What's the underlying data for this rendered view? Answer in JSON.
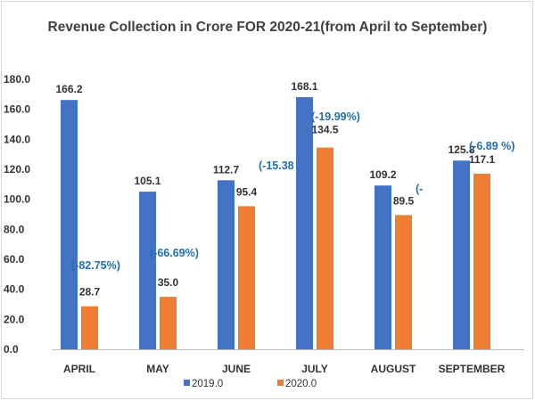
{
  "chart_data": {
    "type": "bar",
    "title": "Revenue Collection in Crore FOR 2020-21(from April to September)",
    "categories": [
      "APRIL",
      "MAY",
      "JUNE",
      "JULY",
      "AUGUST",
      "SEPTEMBER"
    ],
    "series": [
      {
        "name": "2019.0",
        "color": "#4472c4",
        "values": [
          166.2,
          105.1,
          112.7,
          168.1,
          109.2,
          125.8
        ]
      },
      {
        "name": "2020.0",
        "color": "#ed7d31",
        "values": [
          28.7,
          35.0,
          95.4,
          134.5,
          89.5,
          117.1
        ]
      }
    ],
    "value_labels": [
      [
        "166.2",
        "105.1",
        "112.7",
        "168.1",
        "109.2",
        "125.8"
      ],
      [
        "28.7",
        "35.0",
        "95.4",
        "134.5",
        "89.5",
        "117.1"
      ]
    ],
    "annotations": [
      "(-82.75%)",
      "(-66.69%)",
      "(-15.38",
      "(-19.99%)",
      "(-",
      "(-6.89 %)"
    ],
    "yticks": [
      "0.0",
      "20.0",
      "40.0",
      "60.0",
      "80.0",
      "100.0",
      "120.0",
      "140.0",
      "160.0",
      "180.0"
    ],
    "ylim": [
      0,
      180
    ],
    "grid": false,
    "legend_position": "bottom-center"
  }
}
